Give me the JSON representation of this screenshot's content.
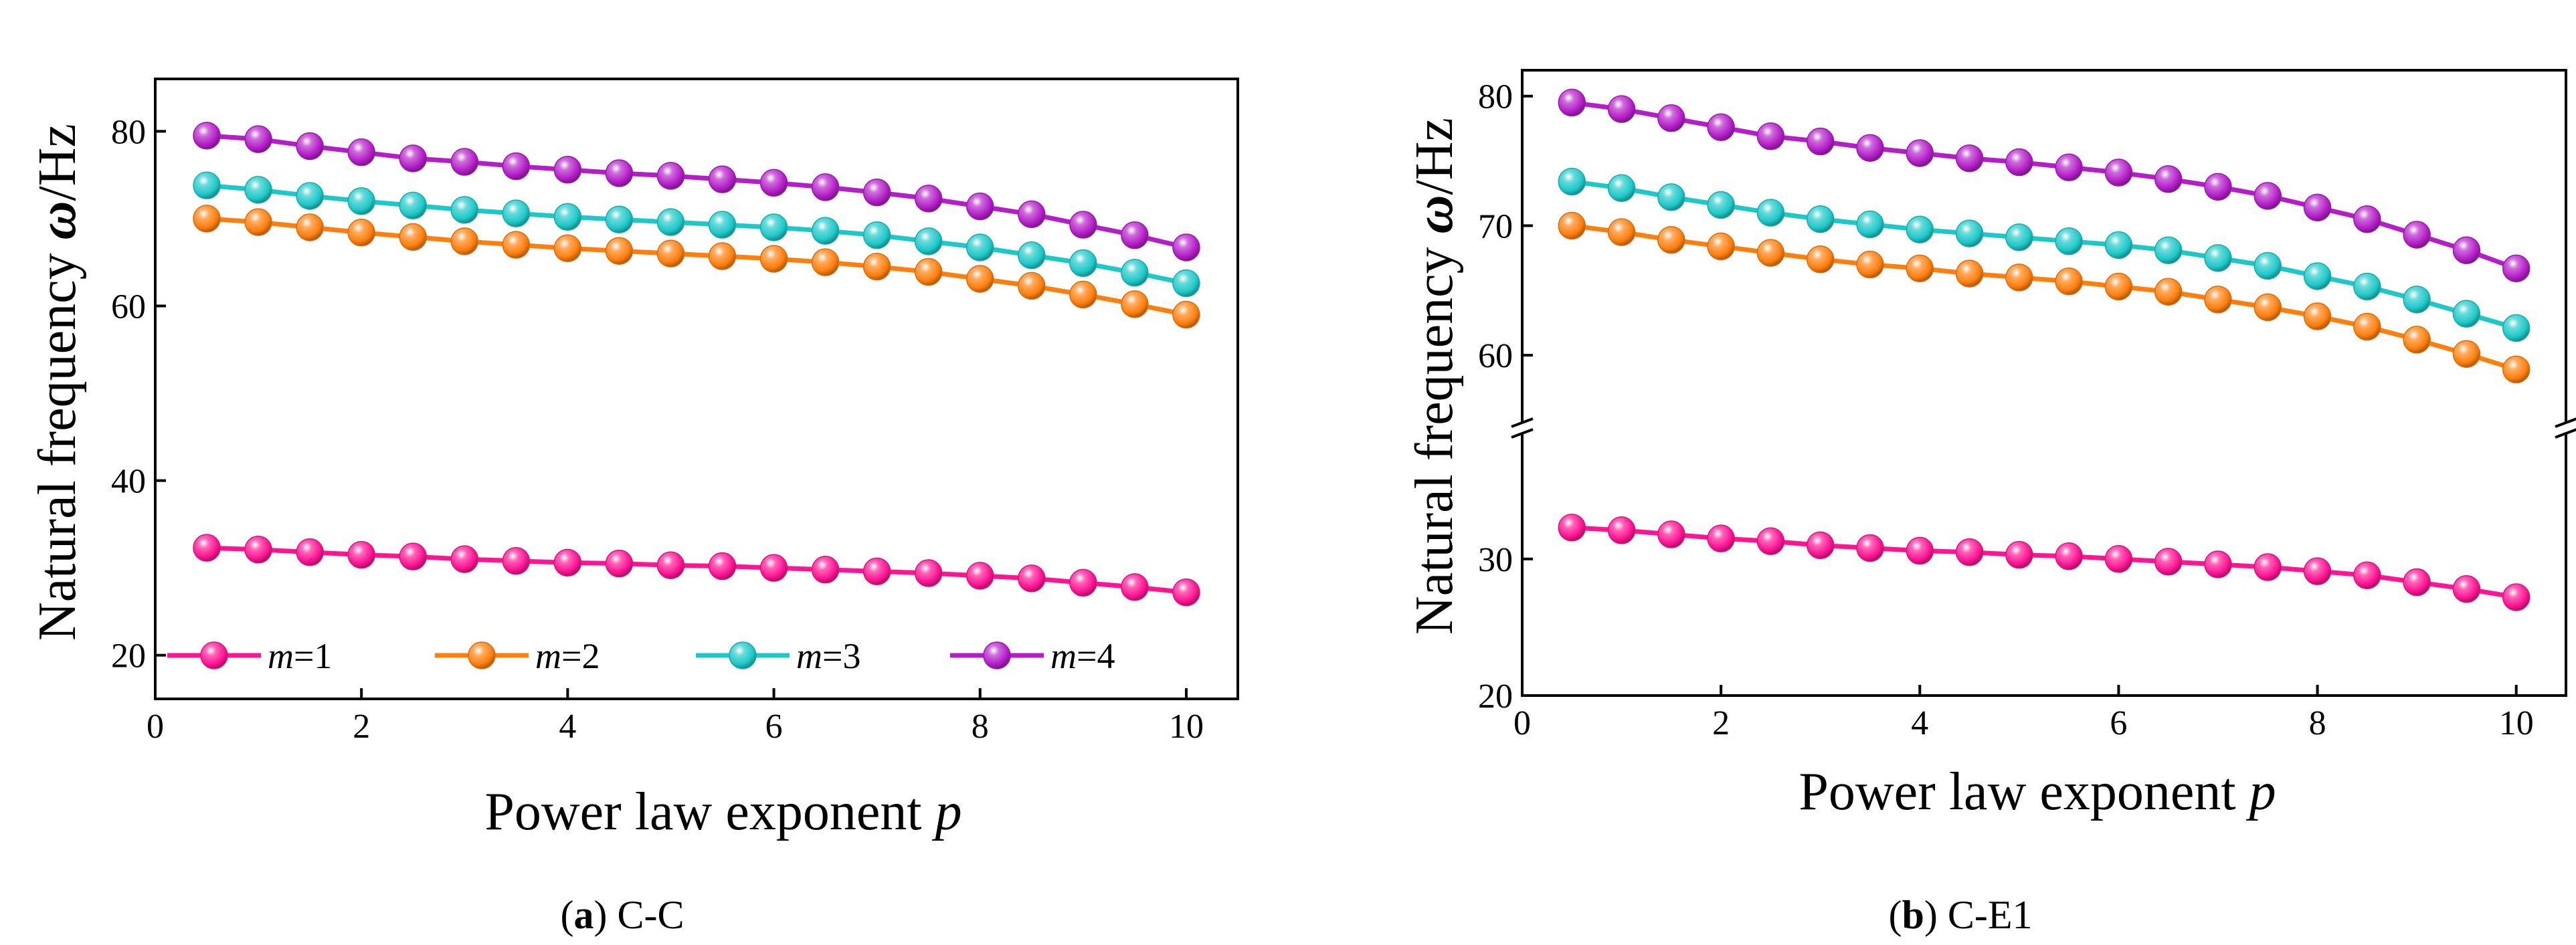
{
  "chart_data": [
    {
      "type": "line",
      "caption_letter": "a",
      "caption_rest": "C-C",
      "xlabel": "Power law exponent",
      "xlabel_var": "p",
      "ylabel_main": "Natural frequency",
      "ylabel_symbol": "ω",
      "ylabel_unit": "/Hz",
      "xlim": [
        0,
        10.5
      ],
      "ylim": [
        15,
        86
      ],
      "xticks": [
        0,
        2,
        4,
        6,
        8,
        10
      ],
      "yticks": [
        20,
        40,
        60,
        80
      ],
      "legend_position": "bottom",
      "x": [
        0.5,
        1,
        1.5,
        2,
        2.5,
        3,
        3.5,
        4,
        4.5,
        5,
        5.5,
        6,
        6.5,
        7,
        7.5,
        8,
        8.5,
        9,
        9.5,
        10
      ],
      "series": [
        {
          "name": "m=1",
          "prefix": "m",
          "suffix": "=1",
          "color": "#ff1493",
          "values": [
            32.3,
            32.1,
            31.8,
            31.5,
            31.3,
            31.0,
            30.8,
            30.6,
            30.5,
            30.3,
            30.2,
            30.0,
            29.8,
            29.6,
            29.4,
            29.1,
            28.8,
            28.3,
            27.8,
            27.2
          ]
        },
        {
          "name": "m=2",
          "prefix": "m",
          "suffix": "=2",
          "color": "#ff7f0e",
          "values": [
            70.0,
            69.6,
            69.0,
            68.4,
            67.9,
            67.4,
            67.0,
            66.6,
            66.3,
            66.0,
            65.7,
            65.4,
            65.0,
            64.5,
            63.9,
            63.1,
            62.3,
            61.3,
            60.2,
            59.0
          ]
        },
        {
          "name": "m=3",
          "prefix": "m",
          "suffix": "=3",
          "color": "#1ec8c8",
          "values": [
            73.8,
            73.3,
            72.6,
            72.0,
            71.5,
            71.0,
            70.6,
            70.2,
            69.9,
            69.6,
            69.3,
            69.0,
            68.6,
            68.1,
            67.4,
            66.7,
            65.8,
            64.9,
            63.8,
            62.6
          ]
        },
        {
          "name": "m=4",
          "prefix": "m",
          "suffix": "=4",
          "color": "#b41ec8",
          "values": [
            79.5,
            79.1,
            78.3,
            77.6,
            76.9,
            76.5,
            76.0,
            75.6,
            75.2,
            74.9,
            74.5,
            74.1,
            73.6,
            73.0,
            72.3,
            71.4,
            70.5,
            69.3,
            68.1,
            66.7
          ]
        }
      ]
    },
    {
      "type": "line",
      "caption_letter": "b",
      "caption_rest": "C-E1",
      "xlabel": "Power law exponent",
      "xlabel_var": "p",
      "ylabel_main": "Natural frequency",
      "ylabel_symbol": "ω",
      "ylabel_unit": "/Hz",
      "xlim": [
        0,
        10.5
      ],
      "broken_y_axis": true,
      "ylim_lower": [
        20,
        39
      ],
      "ylim_upper": [
        55,
        82
      ],
      "xticks": [
        0,
        2,
        4,
        6,
        8,
        10
      ],
      "yticks_lower": [
        20,
        30
      ],
      "yticks_upper": [
        60,
        70,
        80
      ],
      "x": [
        0.5,
        1,
        1.5,
        2,
        2.5,
        3,
        3.5,
        4,
        4.5,
        5,
        5.5,
        6,
        6.5,
        7,
        7.5,
        8,
        8.5,
        9,
        9.5,
        10
      ],
      "series": [
        {
          "name": "m=1",
          "color": "#ff1493",
          "values": [
            32.3,
            32.1,
            31.8,
            31.5,
            31.3,
            31.0,
            30.8,
            30.6,
            30.5,
            30.3,
            30.2,
            30.0,
            29.8,
            29.6,
            29.4,
            29.1,
            28.8,
            28.3,
            27.8,
            27.2
          ]
        },
        {
          "name": "m=2",
          "color": "#ff7f0e",
          "values": [
            70.0,
            69.5,
            68.9,
            68.4,
            67.9,
            67.4,
            67.0,
            66.7,
            66.3,
            66.0,
            65.7,
            65.3,
            64.9,
            64.3,
            63.7,
            63.0,
            62.2,
            61.2,
            60.1,
            58.9
          ]
        },
        {
          "name": "m=3",
          "color": "#1ec8c8",
          "values": [
            73.4,
            72.9,
            72.2,
            71.6,
            71.0,
            70.5,
            70.1,
            69.7,
            69.4,
            69.1,
            68.8,
            68.5,
            68.1,
            67.5,
            66.9,
            66.1,
            65.3,
            64.3,
            63.2,
            62.1
          ]
        },
        {
          "name": "m=4",
          "color": "#b41ec8",
          "values": [
            79.5,
            79.0,
            78.3,
            77.6,
            76.9,
            76.5,
            76.0,
            75.6,
            75.2,
            74.9,
            74.5,
            74.1,
            73.6,
            73.0,
            72.3,
            71.4,
            70.5,
            69.3,
            68.1,
            66.7
          ]
        }
      ]
    }
  ]
}
